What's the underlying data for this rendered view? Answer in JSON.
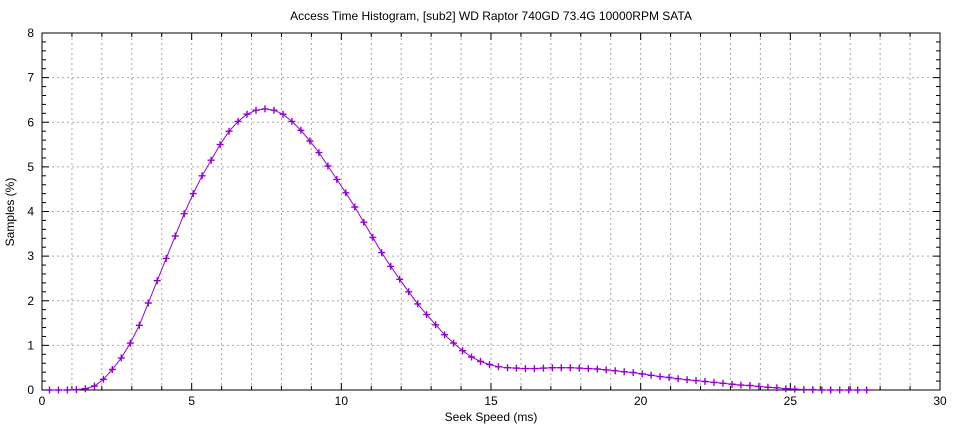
{
  "chart_data": {
    "type": "line",
    "title": "Access Time Histogram, [sub2] WD Raptor 740GD 73.4G 10000RPM SATA",
    "xlabel": "Seek Speed (ms)",
    "ylabel": "Samples (%)",
    "xlim": [
      0,
      30
    ],
    "ylim": [
      0,
      8
    ],
    "x_major_ticks": [
      0,
      5,
      10,
      15,
      20,
      25,
      30
    ],
    "x_minor_step": 1,
    "y_major_ticks": [
      0,
      1,
      2,
      3,
      4,
      5,
      6,
      7,
      8
    ],
    "y_minor_step": 0.2,
    "grid": "dashed gray lines at every 1 ms vertically and every 1 % horizontally",
    "legend": "none",
    "series": [
      {
        "name": "samples",
        "color": "#9400d3",
        "marker": "plus",
        "x": [
          0.25,
          0.55,
          0.85,
          1.15,
          1.45,
          1.75,
          2.05,
          2.35,
          2.65,
          2.95,
          3.25,
          3.55,
          3.85,
          4.15,
          4.45,
          4.75,
          5.05,
          5.35,
          5.65,
          5.95,
          6.25,
          6.55,
          6.85,
          7.15,
          7.45,
          7.75,
          8.05,
          8.35,
          8.65,
          8.95,
          9.25,
          9.55,
          9.85,
          10.15,
          10.45,
          10.75,
          11.05,
          11.35,
          11.65,
          11.95,
          12.25,
          12.55,
          12.85,
          13.15,
          13.45,
          13.75,
          14.05,
          14.35,
          14.65,
          14.95,
          15.25,
          15.55,
          15.85,
          16.15,
          16.45,
          16.75,
          17.05,
          17.35,
          17.65,
          17.95,
          18.25,
          18.55,
          18.85,
          19.15,
          19.45,
          19.75,
          20.05,
          20.35,
          20.65,
          20.95,
          21.25,
          21.55,
          21.85,
          22.15,
          22.45,
          22.75,
          23.05,
          23.35,
          23.65,
          23.95,
          24.25,
          24.55,
          24.85,
          25.15,
          25.45,
          25.75,
          26.05,
          26.35,
          26.65,
          26.95,
          27.25,
          27.55
        ],
        "y": [
          0,
          0,
          0,
          0.01,
          0.03,
          0.09,
          0.24,
          0.46,
          0.72,
          1.05,
          1.45,
          1.95,
          2.45,
          2.95,
          3.45,
          3.95,
          4.4,
          4.8,
          5.15,
          5.5,
          5.8,
          6.02,
          6.18,
          6.27,
          6.3,
          6.27,
          6.18,
          6.02,
          5.82,
          5.58,
          5.32,
          5.02,
          4.72,
          4.42,
          4.1,
          3.76,
          3.42,
          3.08,
          2.77,
          2.48,
          2.2,
          1.93,
          1.69,
          1.46,
          1.24,
          1.05,
          0.88,
          0.74,
          0.64,
          0.57,
          0.52,
          0.5,
          0.49,
          0.48,
          0.48,
          0.49,
          0.5,
          0.5,
          0.5,
          0.49,
          0.48,
          0.47,
          0.45,
          0.43,
          0.41,
          0.39,
          0.36,
          0.33,
          0.3,
          0.28,
          0.25,
          0.23,
          0.21,
          0.19,
          0.17,
          0.15,
          0.13,
          0.11,
          0.1,
          0.08,
          0.06,
          0.05,
          0.03,
          0.02,
          0.01,
          0.01,
          0,
          0,
          0,
          0,
          0,
          0
        ]
      }
    ]
  },
  "colors": {
    "series_accent": "#9400d3",
    "grid": "#a8a8a8",
    "border": "#000000",
    "background": "#ffffff"
  }
}
